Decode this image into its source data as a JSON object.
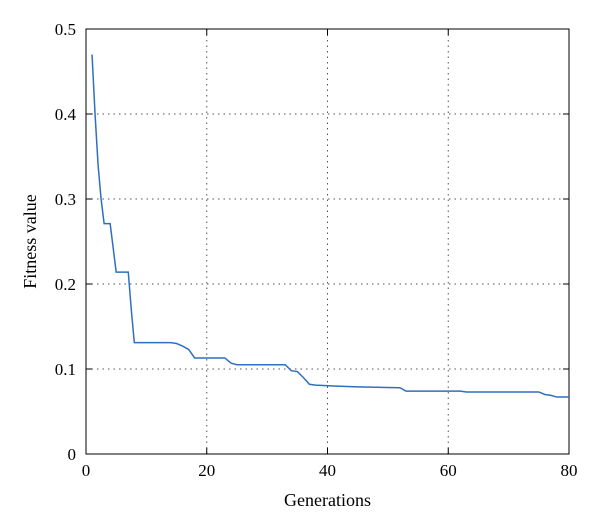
{
  "chart_data": {
    "type": "line",
    "title": "",
    "xlabel": "Generations",
    "ylabel": "Fitness value",
    "xlim": [
      0,
      80
    ],
    "ylim": [
      0,
      0.5
    ],
    "xticks": [
      0,
      20,
      40,
      60,
      80
    ],
    "yticks": [
      0,
      0.1,
      0.2,
      0.3,
      0.4,
      0.5
    ],
    "xtick_labels": [
      "0",
      "20",
      "40",
      "60",
      "80"
    ],
    "ytick_labels": [
      "0",
      "0.1",
      "0.2",
      "0.3",
      "0.4",
      "0.5"
    ],
    "grid": true,
    "grid_style": "dotted",
    "legend": "none",
    "series": [
      {
        "color": "#2f6fbf",
        "x": [
          1,
          1.5,
          2,
          2.5,
          3,
          4,
          5,
          6,
          7,
          7.5,
          8,
          14,
          15,
          16,
          17,
          18,
          19,
          23,
          24,
          25,
          27,
          33,
          34,
          35,
          36,
          37,
          38,
          41,
          45,
          52,
          53,
          62,
          63,
          75,
          76,
          77,
          78,
          80
        ],
        "y": [
          0.47,
          0.4,
          0.34,
          0.3,
          0.271,
          0.271,
          0.214,
          0.214,
          0.214,
          0.17,
          0.131,
          0.131,
          0.13,
          0.127,
          0.123,
          0.113,
          0.113,
          0.113,
          0.107,
          0.105,
          0.105,
          0.105,
          0.098,
          0.097,
          0.09,
          0.082,
          0.081,
          0.08,
          0.079,
          0.078,
          0.074,
          0.074,
          0.073,
          0.073,
          0.07,
          0.069,
          0.067,
          0.067
        ]
      }
    ]
  }
}
